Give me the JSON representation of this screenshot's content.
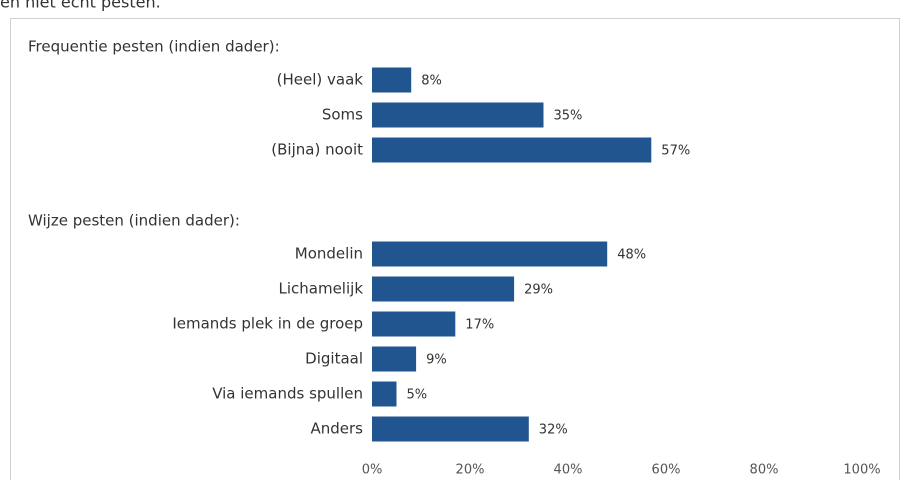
{
  "chart_data": {
    "type": "bar",
    "subtitle": "en niet echt pesten.",
    "color": "#215590",
    "groups": [
      {
        "title": "Frequentie pesten (indien dader):",
        "categories": [
          "(Heel) vaak",
          "Soms",
          "(Bijna) nooit"
        ],
        "values": [
          8,
          35,
          57
        ],
        "value_labels": [
          "8%",
          "35%",
          "57%"
        ]
      },
      {
        "title": "Wijze pesten (indien dader):",
        "categories": [
          "Mondelin",
          "Lichamelijk",
          "Iemands plek in de groep",
          "Digitaal",
          "Via iemands spullen",
          "Anders"
        ],
        "values": [
          48,
          29,
          17,
          9,
          5,
          32
        ],
        "value_labels": [
          "48%",
          "29%",
          "17%",
          "9%",
          "5%",
          "32%"
        ]
      }
    ],
    "xlim": [
      0,
      100
    ],
    "xticks": [
      {
        "value": 0,
        "label": "0%"
      },
      {
        "value": 20,
        "label": "20%"
      },
      {
        "value": 40,
        "label": "40%"
      },
      {
        "value": 60,
        "label": "60%"
      },
      {
        "value": 80,
        "label": "80%"
      },
      {
        "value": 100,
        "label": "100%"
      }
    ]
  }
}
